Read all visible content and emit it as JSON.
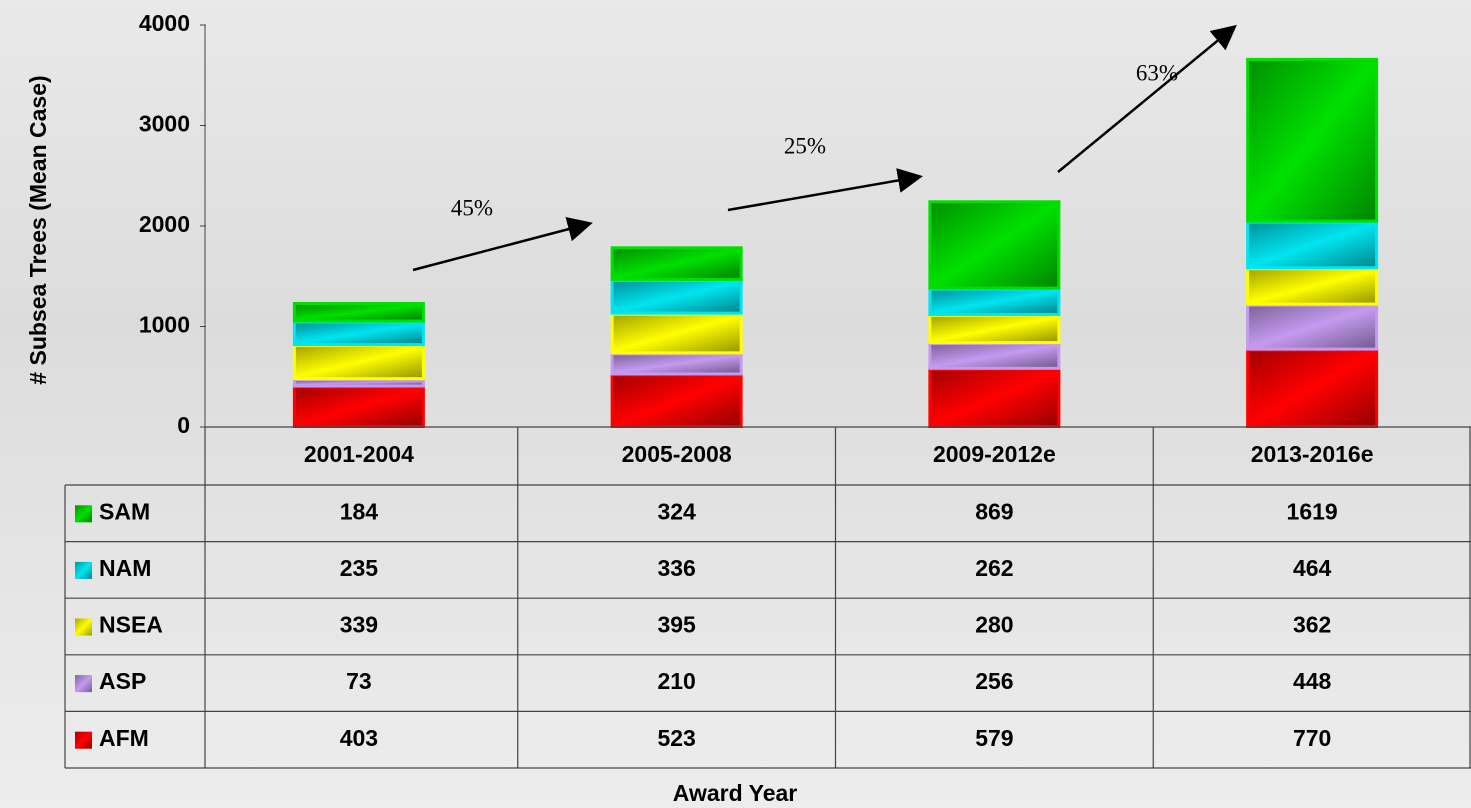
{
  "chart_data": {
    "type": "stacked_bar",
    "ylabel": "# Subsea Trees (Mean Case)",
    "xlabel": "Award Year",
    "categories": [
      "2001-2004",
      "2005-2008",
      "2009-2012e",
      "2013-2016e"
    ],
    "series": [
      {
        "name": "AFM",
        "color": "#ff0000",
        "values": [
          403,
          523,
          579,
          770
        ]
      },
      {
        "name": "ASP",
        "color": "#c49af0",
        "values": [
          73,
          210,
          256,
          448
        ]
      },
      {
        "name": "NSEA",
        "color": "#ffff00",
        "values": [
          339,
          395,
          280,
          362
        ]
      },
      {
        "name": "NAM",
        "color": "#00e5f0",
        "values": [
          235,
          336,
          262,
          464
        ]
      },
      {
        "name": "SAM",
        "color": "#00e000",
        "values": [
          184,
          324,
          869,
          1619
        ]
      }
    ],
    "ylim": [
      0,
      4000
    ],
    "yticks": [
      0,
      1000,
      2000,
      3000,
      4000
    ],
    "annotations": [
      "45%",
      "25%",
      "63%"
    ]
  }
}
